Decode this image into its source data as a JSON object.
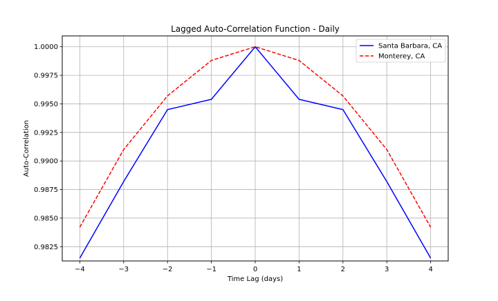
{
  "chart_data": {
    "type": "line",
    "title": "Lagged Auto-Correlation Function - Daily",
    "xlabel": "Time Lag (days)",
    "ylabel": "Auto-Correlation",
    "x": [
      -4,
      -3,
      -2,
      -1,
      0,
      1,
      2,
      3,
      4
    ],
    "x_tick_labels": [
      "−4",
      "−3",
      "−2",
      "−1",
      "0",
      "1",
      "2",
      "3",
      "4"
    ],
    "y_ticks": [
      0.9825,
      0.985,
      0.9875,
      0.99,
      0.9925,
      0.995,
      0.9975,
      1.0
    ],
    "y_tick_labels": [
      "0.9825",
      "0.9850",
      "0.9875",
      "0.9900",
      "0.9925",
      "0.9950",
      "0.9975",
      "1.0000"
    ],
    "xlim": [
      -4.4,
      4.4
    ],
    "ylim": [
      0.98125,
      1.00095
    ],
    "grid": true,
    "legend_position": "top-right",
    "series": [
      {
        "name": "Santa Barbara, CA",
        "color": "#0000ff",
        "line_style": "solid",
        "values": [
          0.9815,
          0.9882,
          0.9945,
          0.9954,
          1.0,
          0.9954,
          0.9945,
          0.9882,
          0.9815
        ]
      },
      {
        "name": "Monterey, CA",
        "color": "#ff0000",
        "line_style": "dashed",
        "values": [
          0.9842,
          0.991,
          0.9957,
          0.9988,
          1.0,
          0.9988,
          0.9957,
          0.991,
          0.9842
        ]
      }
    ]
  }
}
